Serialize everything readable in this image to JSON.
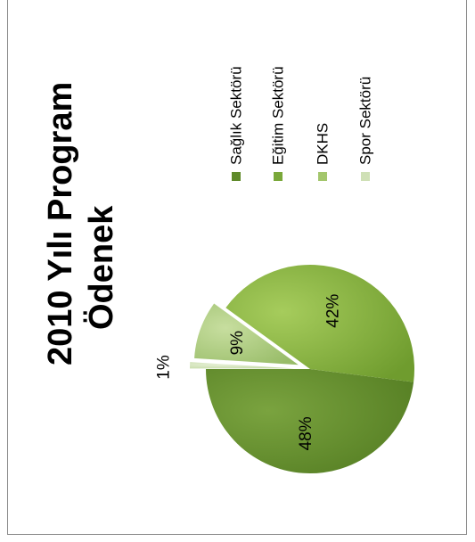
{
  "chart_data": {
    "type": "pie",
    "title": "2010 Yılı Program Ödenek",
    "title_lines": [
      "2010 Yılı Program",
      "Ödenek"
    ],
    "categories": [
      "Sağlık Sektörü",
      "Eğitim Sektörü",
      "DKHS",
      "Spor Sektörü"
    ],
    "values": [
      48,
      42,
      9,
      1
    ],
    "data_labels": [
      "48%",
      "42%",
      "9%",
      "1%"
    ],
    "colors": [
      "#5f8a2a",
      "#7aa83a",
      "#a9c97a",
      "#d3e4bd"
    ],
    "exploded": true,
    "legend_position": "right",
    "orientation": "rotated-90-ccw"
  }
}
